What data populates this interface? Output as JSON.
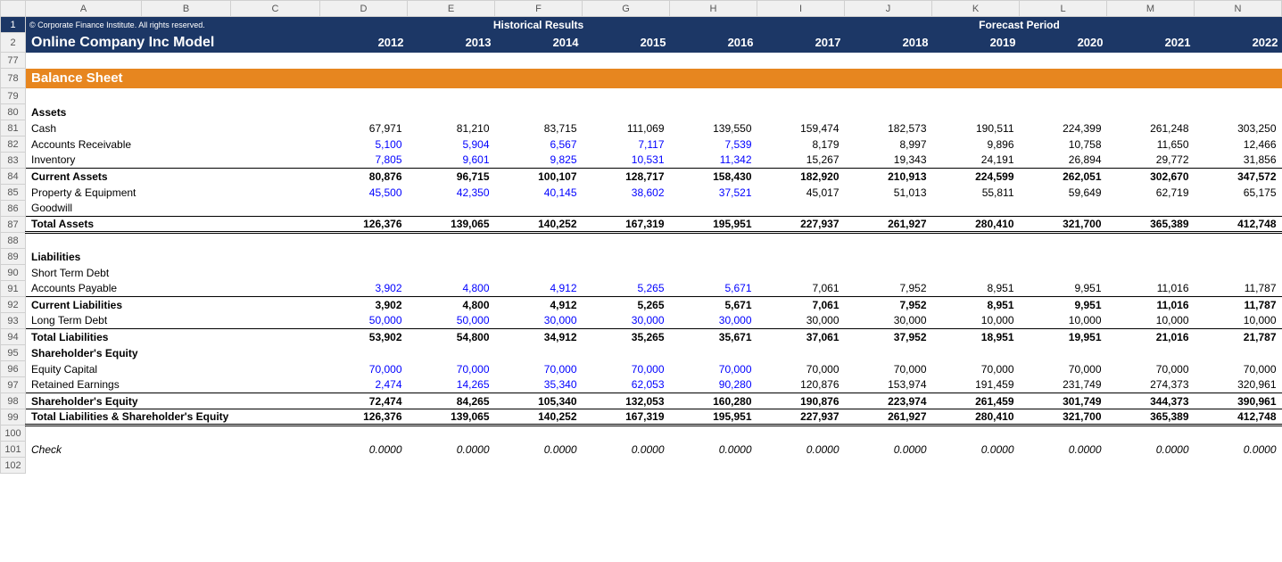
{
  "colHeaders": [
    "A",
    "B",
    "C",
    "D",
    "E",
    "F",
    "G",
    "H",
    "I",
    "J",
    "K",
    "L",
    "M",
    "N"
  ],
  "copyright": "© Corporate Finance Institute. All rights reserved.",
  "histHeader": "Historical Results",
  "forecastHeader": "Forecast Period",
  "title": "Online Company Inc Model",
  "years": [
    "2012",
    "2013",
    "2014",
    "2015",
    "2016",
    "2017",
    "2018",
    "2019",
    "2020",
    "2021",
    "2022"
  ],
  "sectionTitle": "Balance Sheet",
  "colors": {
    "navy": "#1c3766",
    "teal": "#2b9faa",
    "orange": "#e7861f",
    "blueText": "#0000ff",
    "gridBg": "#f0f0f0",
    "gridBorder": "#d0d0d0"
  },
  "rows": [
    {
      "rn": "77",
      "type": "blank"
    },
    {
      "rn": "78",
      "type": "section"
    },
    {
      "rn": "79",
      "type": "blank"
    },
    {
      "rn": "80",
      "type": "label",
      "label": "Assets",
      "bold": true
    },
    {
      "rn": "81",
      "type": "data",
      "label": "Cash",
      "vals": [
        "67,971",
        "81,210",
        "83,715",
        "111,069",
        "139,550",
        "159,474",
        "182,573",
        "190,511",
        "224,399",
        "261,248",
        "303,250"
      ],
      "histBlue": false
    },
    {
      "rn": "82",
      "type": "data",
      "label": "Accounts Receivable",
      "vals": [
        "5,100",
        "5,904",
        "6,567",
        "7,117",
        "7,539",
        "8,179",
        "8,997",
        "9,896",
        "10,758",
        "11,650",
        "12,466"
      ],
      "histBlue": true
    },
    {
      "rn": "83",
      "type": "data",
      "label": "Inventory",
      "vals": [
        "7,805",
        "9,601",
        "9,825",
        "10,531",
        "11,342",
        "15,267",
        "19,343",
        "24,191",
        "26,894",
        "29,772",
        "31,856"
      ],
      "histBlue": true
    },
    {
      "rn": "84",
      "type": "data",
      "label": "Current Assets",
      "bold": true,
      "topBorder": true,
      "vals": [
        "80,876",
        "96,715",
        "100,107",
        "128,717",
        "158,430",
        "182,920",
        "210,913",
        "224,599",
        "262,051",
        "302,670",
        "347,572"
      ]
    },
    {
      "rn": "85",
      "type": "data",
      "label": "Property & Equipment",
      "vals": [
        "45,500",
        "42,350",
        "40,145",
        "38,602",
        "37,521",
        "45,017",
        "51,013",
        "55,811",
        "59,649",
        "62,719",
        "65,175"
      ],
      "histBlue": true
    },
    {
      "rn": "86",
      "type": "label",
      "label": "Goodwill"
    },
    {
      "rn": "87",
      "type": "data",
      "label": "Total Assets",
      "bold": true,
      "doubleBorder": true,
      "vals": [
        "126,376",
        "139,065",
        "140,252",
        "167,319",
        "195,951",
        "227,937",
        "261,927",
        "280,410",
        "321,700",
        "365,389",
        "412,748"
      ]
    },
    {
      "rn": "88",
      "type": "blank"
    },
    {
      "rn": "89",
      "type": "label",
      "label": "Liabilities",
      "bold": true
    },
    {
      "rn": "90",
      "type": "label",
      "label": "Short Term Debt"
    },
    {
      "rn": "91",
      "type": "data",
      "label": "Accounts Payable",
      "vals": [
        "3,902",
        "4,800",
        "4,912",
        "5,265",
        "5,671",
        "7,061",
        "7,952",
        "8,951",
        "9,951",
        "11,016",
        "11,787"
      ],
      "histBlue": true
    },
    {
      "rn": "92",
      "type": "data",
      "label": "Current Liabilities",
      "bold": true,
      "topBorder": true,
      "vals": [
        "3,902",
        "4,800",
        "4,912",
        "5,265",
        "5,671",
        "7,061",
        "7,952",
        "8,951",
        "9,951",
        "11,016",
        "11,787"
      ]
    },
    {
      "rn": "93",
      "type": "data",
      "label": "Long Term Debt",
      "vals": [
        "50,000",
        "50,000",
        "30,000",
        "30,000",
        "30,000",
        "30,000",
        "30,000",
        "10,000",
        "10,000",
        "10,000",
        "10,000"
      ],
      "histBlue": true
    },
    {
      "rn": "94",
      "type": "data",
      "label": "Total Liabilities",
      "bold": true,
      "topBorder": true,
      "vals": [
        "53,902",
        "54,800",
        "34,912",
        "35,265",
        "35,671",
        "37,061",
        "37,952",
        "18,951",
        "19,951",
        "21,016",
        "21,787"
      ]
    },
    {
      "rn": "95",
      "type": "label",
      "label": "Shareholder's Equity",
      "bold": true
    },
    {
      "rn": "96",
      "type": "data",
      "label": "Equity Capital",
      "vals": [
        "70,000",
        "70,000",
        "70,000",
        "70,000",
        "70,000",
        "70,000",
        "70,000",
        "70,000",
        "70,000",
        "70,000",
        "70,000"
      ],
      "histBlue": true
    },
    {
      "rn": "97",
      "type": "data",
      "label": "Retained Earnings",
      "vals": [
        "2,474",
        "14,265",
        "35,340",
        "62,053",
        "90,280",
        "120,876",
        "153,974",
        "191,459",
        "231,749",
        "274,373",
        "320,961"
      ],
      "histBlue": true
    },
    {
      "rn": "98",
      "type": "data",
      "label": "Shareholder's Equity",
      "bold": true,
      "topBorder": true,
      "vals": [
        "72,474",
        "84,265",
        "105,340",
        "132,053",
        "160,280",
        "190,876",
        "223,974",
        "261,459",
        "301,749",
        "344,373",
        "390,961"
      ]
    },
    {
      "rn": "99",
      "type": "data",
      "label": "Total Liabilities & Shareholder's Equity",
      "bold": true,
      "doubleBorder": true,
      "vals": [
        "126,376",
        "139,065",
        "140,252",
        "167,319",
        "195,951",
        "227,937",
        "261,927",
        "280,410",
        "321,700",
        "365,389",
        "412,748"
      ]
    },
    {
      "rn": "100",
      "type": "blank"
    },
    {
      "rn": "101",
      "type": "data",
      "label": "Check",
      "italic": true,
      "vals": [
        "0.0000",
        "0.0000",
        "0.0000",
        "0.0000",
        "0.0000",
        "0.0000",
        "0.0000",
        "0.0000",
        "0.0000",
        "0.0000",
        "0.0000"
      ]
    },
    {
      "rn": "102",
      "type": "blank"
    }
  ]
}
